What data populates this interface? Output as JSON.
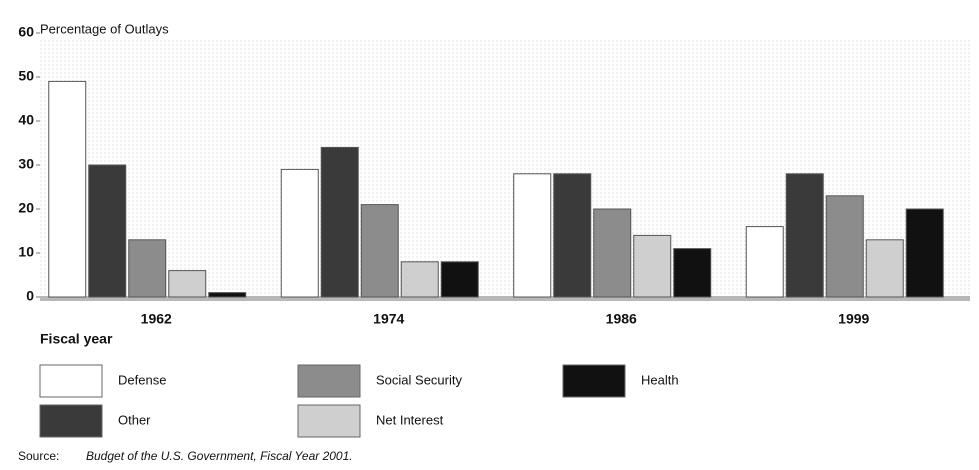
{
  "chart_data": {
    "type": "bar",
    "y_label": "Percentage of Outlays",
    "x_label": "Fiscal year",
    "categories": [
      "1962",
      "1974",
      "1986",
      "1999"
    ],
    "series": [
      {
        "name": "Defense",
        "color": "#ffffff",
        "values": [
          49,
          29,
          28,
          16
        ]
      },
      {
        "name": "Other",
        "color": "#3a3a3a",
        "values": [
          30,
          34,
          28,
          28
        ]
      },
      {
        "name": "Social Security",
        "color": "#8c8c8c",
        "values": [
          13,
          21,
          20,
          23
        ]
      },
      {
        "name": "Net Interest",
        "color": "#cfcfcf",
        "values": [
          6,
          8,
          14,
          13
        ]
      },
      {
        "name": "Health",
        "color": "#111111",
        "values": [
          1,
          8,
          11,
          20
        ]
      }
    ],
    "ylim": [
      0,
      60
    ],
    "yticks": [
      0,
      10,
      20,
      30,
      40,
      50,
      60
    ],
    "source_label": "Source:",
    "source": "Budget of the U.S. Government, Fiscal Year 2001."
  }
}
